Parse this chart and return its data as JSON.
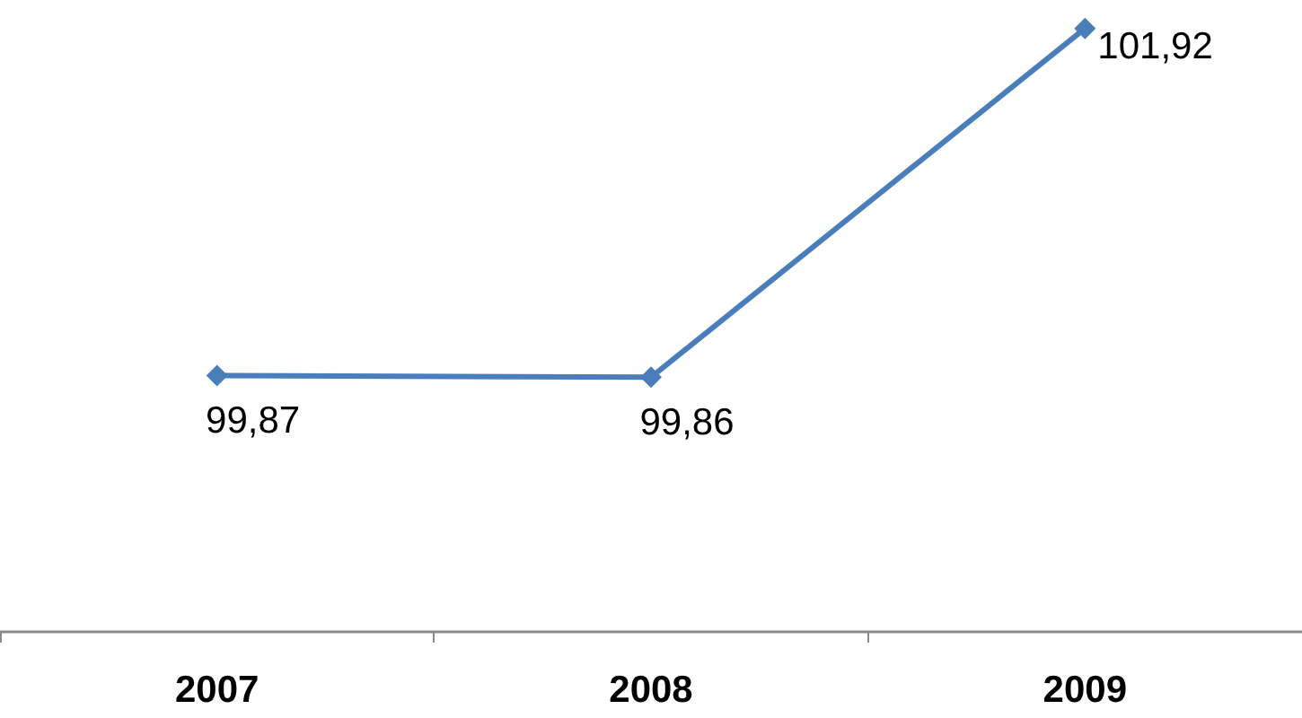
{
  "chart_data": {
    "type": "line",
    "categories": [
      "2007",
      "2008",
      "2009"
    ],
    "series": [
      {
        "color": "#4a7ebb",
        "values": [
          99.87,
          99.86,
          101.92
        ],
        "value_labels": [
          "99,87",
          "99,86",
          "101,92"
        ]
      }
    ],
    "marker": "diamond",
    "tick_labels": "x"
  }
}
